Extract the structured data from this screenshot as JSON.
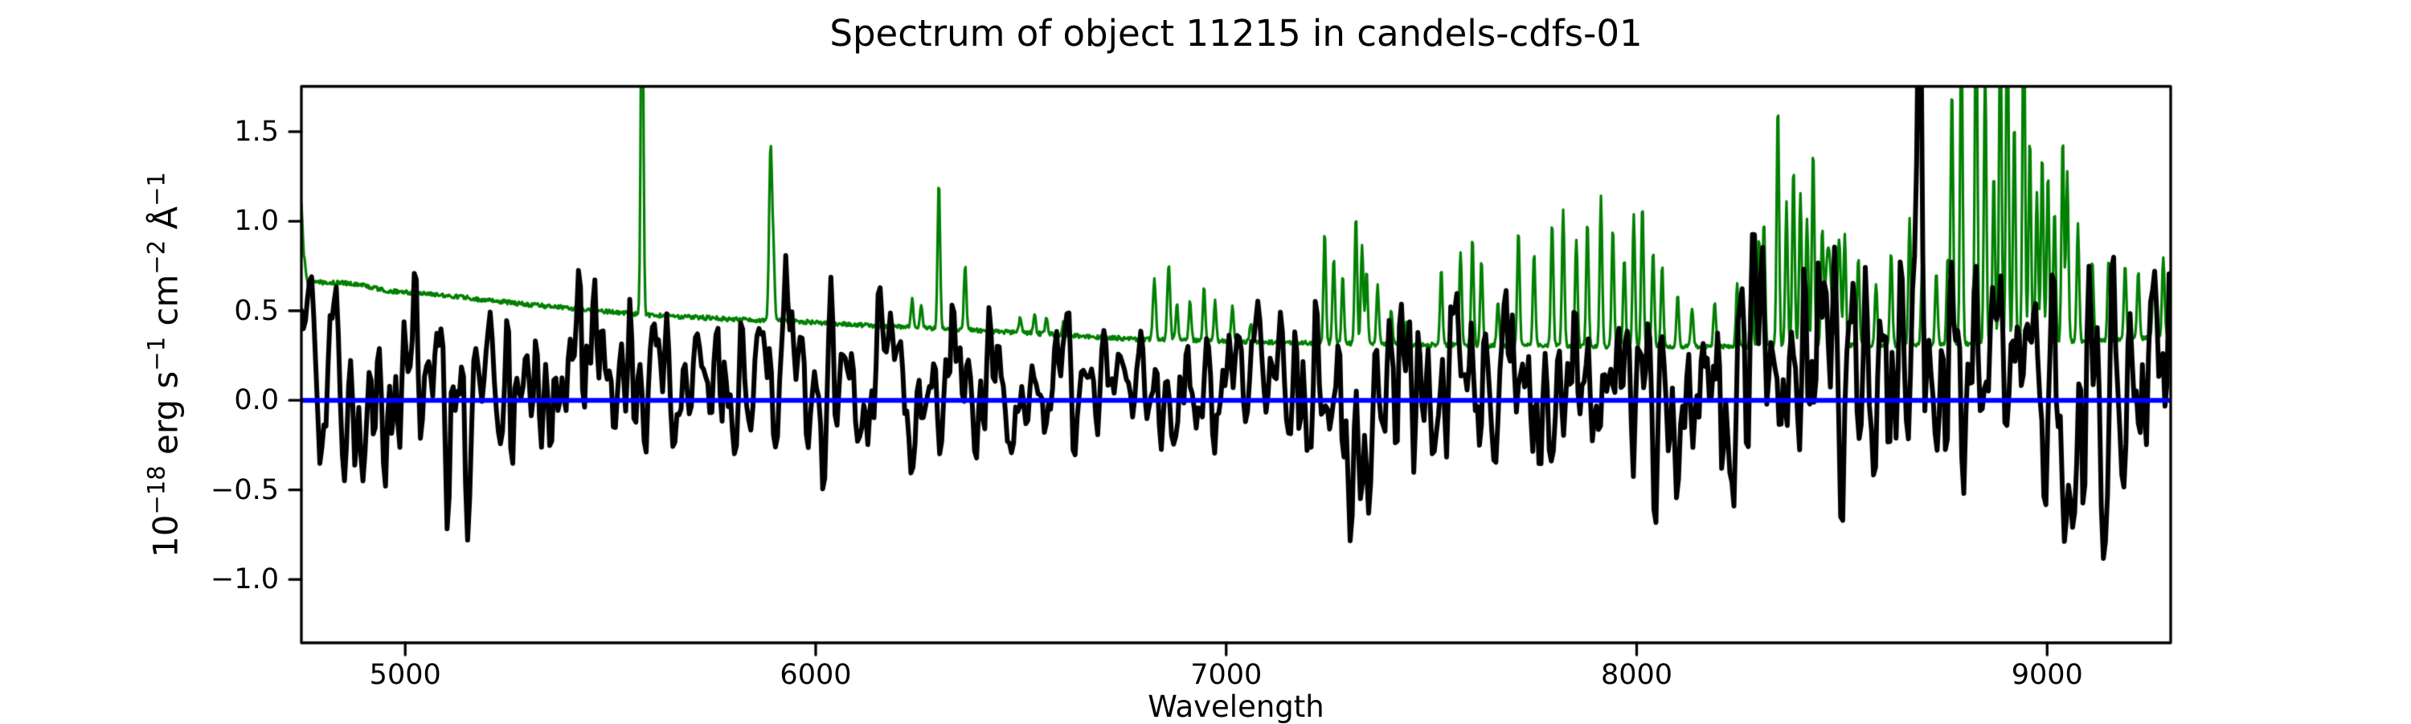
{
  "figure": {
    "title": "Spectrum of object 11215 in candels-cdfs-01",
    "xlabel": "Wavelength",
    "ylabel_parts": [
      {
        "text": "10",
        "sup": false
      },
      {
        "text": "−18",
        "sup": true
      },
      {
        "text": " erg s",
        "sup": false
      },
      {
        "text": "−1",
        "sup": true
      },
      {
        "text": " cm",
        "sup": false
      },
      {
        "text": "−2",
        "sup": true
      },
      {
        "text": " Å",
        "sup": false
      },
      {
        "text": "−1",
        "sup": true
      }
    ]
  },
  "chart_data": {
    "type": "line",
    "title": "Spectrum of object 11215 in candels-cdfs-01",
    "xlabel": "Wavelength",
    "ylabel": "10⁻¹⁸ erg s⁻¹ cm⁻² Å⁻¹",
    "xlim": [
      4747,
      9301
    ],
    "ylim": [
      -1.354,
      1.753
    ],
    "xticks": [
      5000,
      6000,
      7000,
      8000,
      9000
    ],
    "xtick_labels": [
      "5000",
      "6000",
      "7000",
      "8000",
      "9000"
    ],
    "yticks": [
      1.5,
      1.0,
      0.5,
      0.0,
      -0.5,
      -1.0
    ],
    "ytick_labels": [
      "1.5",
      "1.0",
      "0.5",
      "0.0",
      "−0.5",
      "−1.0"
    ],
    "grid": false,
    "legend": null,
    "noise_seed": 11215,
    "flux_step": 5,
    "error_step": 2,
    "reference_line": {
      "y": 0.0,
      "color": "#0000ff",
      "linewidth": 6
    },
    "frame_color": "#000000",
    "series": [
      {
        "name": "object flux",
        "color": "#000000",
        "linewidth": 6,
        "mean_sigma_envelope": [
          [
            4747,
            0.18,
            0.2
          ],
          [
            4800,
            0.15,
            0.24
          ],
          [
            4900,
            0.1,
            0.26
          ],
          [
            5000,
            0.08,
            0.26
          ],
          [
            5150,
            0.08,
            0.27
          ],
          [
            5300,
            0.1,
            0.25
          ],
          [
            5450,
            0.12,
            0.22
          ],
          [
            5600,
            0.13,
            0.22
          ],
          [
            5750,
            0.15,
            0.25
          ],
          [
            5900,
            0.16,
            0.26
          ],
          [
            6050,
            0.12,
            0.24
          ],
          [
            6200,
            0.11,
            0.23
          ],
          [
            6350,
            0.11,
            0.22
          ],
          [
            6500,
            0.1,
            0.19
          ],
          [
            6650,
            0.09,
            0.17
          ],
          [
            6800,
            0.09,
            0.18
          ],
          [
            6950,
            0.08,
            0.2
          ],
          [
            7100,
            0.07,
            0.22
          ],
          [
            7250,
            0.05,
            0.28
          ],
          [
            7400,
            0.06,
            0.3
          ],
          [
            7550,
            0.08,
            0.28
          ],
          [
            7700,
            0.09,
            0.28
          ],
          [
            7850,
            0.08,
            0.3
          ],
          [
            8000,
            0.06,
            0.3
          ],
          [
            8150,
            0.08,
            0.3
          ],
          [
            8300,
            0.12,
            0.38
          ],
          [
            8450,
            0.12,
            0.42
          ],
          [
            8600,
            0.13,
            0.4
          ],
          [
            8750,
            0.1,
            0.38
          ],
          [
            8900,
            0.08,
            0.38
          ],
          [
            9050,
            0.05,
            0.36
          ],
          [
            9200,
            0.1,
            0.34
          ],
          [
            9301,
            0.14,
            0.32
          ]
        ],
        "features": [
          [
            4770,
            0.3,
            8
          ],
          [
            5050,
            -0.3,
            6
          ],
          [
            5230,
            -0.35,
            8
          ],
          [
            5890,
            0.35,
            6
          ],
          [
            5930,
            0.45,
            10
          ],
          [
            7280,
            -0.35,
            20
          ],
          [
            7600,
            0.25,
            10
          ],
          [
            8310,
            0.4,
            5
          ],
          [
            8345,
            0.4,
            6
          ],
          [
            8500,
            -1.32,
            4
          ],
          [
            8640,
            0.35,
            8
          ],
          [
            8690,
            1.42,
            5
          ],
          [
            8870,
            0.4,
            6
          ],
          [
            9048,
            -0.65,
            5
          ],
          [
            9260,
            0.3,
            8
          ]
        ]
      },
      {
        "name": "noise / sky spectrum",
        "color": "#008000",
        "linewidth": 3.2,
        "noise_amp": 0.012,
        "baseline": [
          [
            4747,
            1.09
          ],
          [
            4753,
            0.82
          ],
          [
            4762,
            0.645
          ],
          [
            4790,
            0.66
          ],
          [
            4850,
            0.655
          ],
          [
            4900,
            0.64
          ],
          [
            4960,
            0.61
          ],
          [
            5020,
            0.6
          ],
          [
            5100,
            0.585
          ],
          [
            5200,
            0.56
          ],
          [
            5300,
            0.535
          ],
          [
            5400,
            0.515
          ],
          [
            5500,
            0.495
          ],
          [
            5600,
            0.475
          ],
          [
            5700,
            0.465
          ],
          [
            5800,
            0.452
          ],
          [
            5900,
            0.445
          ],
          [
            6000,
            0.435
          ],
          [
            6100,
            0.422
          ],
          [
            6200,
            0.41
          ],
          [
            6300,
            0.4
          ],
          [
            6400,
            0.39
          ],
          [
            6500,
            0.378
          ],
          [
            6600,
            0.365
          ],
          [
            6700,
            0.352
          ],
          [
            6800,
            0.34
          ],
          [
            6900,
            0.335
          ],
          [
            7000,
            0.33
          ],
          [
            7100,
            0.325
          ],
          [
            7200,
            0.32
          ],
          [
            7350,
            0.315
          ],
          [
            7500,
            0.31
          ],
          [
            7700,
            0.305
          ],
          [
            7900,
            0.3
          ],
          [
            8100,
            0.3
          ],
          [
            8300,
            0.3
          ],
          [
            8500,
            0.305
          ],
          [
            8700,
            0.31
          ],
          [
            8900,
            0.32
          ],
          [
            9100,
            0.33
          ],
          [
            9200,
            0.34
          ],
          [
            9301,
            0.36
          ]
        ],
        "emission_lines": [
          [
            5577,
            2.2,
            3
          ],
          [
            5890,
            0.97,
            3.5
          ],
          [
            5897,
            0.35,
            3
          ],
          [
            6235,
            0.16,
            3
          ],
          [
            6257,
            0.12,
            3
          ],
          [
            6300,
            0.83,
            3
          ],
          [
            6364,
            0.36,
            3
          ],
          [
            6498,
            0.08,
            3
          ],
          [
            6533,
            0.11,
            3
          ],
          [
            6562,
            0.09,
            3
          ],
          [
            6604,
            0.07,
            3
          ],
          [
            6825,
            0.34,
            3.5
          ],
          [
            6860,
            0.42,
            3.5
          ],
          [
            6880,
            0.2,
            3
          ],
          [
            6912,
            0.22,
            3
          ],
          [
            6946,
            0.3,
            3
          ],
          [
            6973,
            0.22,
            3
          ],
          [
            7015,
            0.2,
            3
          ],
          [
            7060,
            0.1,
            3
          ],
          [
            7240,
            0.62,
            3
          ],
          [
            7262,
            0.48,
            3
          ],
          [
            7284,
            0.38,
            3
          ],
          [
            7316,
            0.72,
            3
          ],
          [
            7331,
            0.55,
            3
          ],
          [
            7342,
            0.4,
            3
          ],
          [
            7369,
            0.33,
            3
          ],
          [
            7402,
            0.2,
            3
          ],
          [
            7440,
            0.12,
            3
          ],
          [
            7524,
            0.42,
            3
          ],
          [
            7571,
            0.52,
            3
          ],
          [
            7600,
            0.6,
            3
          ],
          [
            7622,
            0.48,
            3
          ],
          [
            7662,
            0.25,
            3
          ],
          [
            7712,
            0.65,
            3
          ],
          [
            7750,
            0.52,
            3
          ],
          [
            7794,
            0.7,
            3
          ],
          [
            7821,
            0.76,
            3
          ],
          [
            7853,
            0.6,
            3
          ],
          [
            7880,
            0.7,
            3
          ],
          [
            7913,
            0.84,
            3
          ],
          [
            7942,
            0.66,
            3
          ],
          [
            7970,
            0.5,
            3
          ],
          [
            7993,
            0.74,
            3
          ],
          [
            8014,
            0.8,
            3
          ],
          [
            8040,
            0.54,
            3
          ],
          [
            8062,
            0.46,
            3
          ],
          [
            8100,
            0.3,
            3
          ],
          [
            8135,
            0.22,
            3
          ],
          [
            8190,
            0.25,
            3
          ],
          [
            8245,
            0.35,
            3
          ],
          [
            8280,
            0.55,
            3
          ],
          [
            8298,
            0.62,
            3
          ],
          [
            8310,
            0.7,
            3
          ],
          [
            8344,
            1.35,
            3
          ],
          [
            8365,
            0.8,
            3
          ],
          [
            8382,
            1.0,
            3
          ],
          [
            8399,
            0.86,
            3
          ],
          [
            8415,
            0.72,
            3
          ],
          [
            8430,
            1.1,
            3
          ],
          [
            8452,
            0.6,
            3
          ],
          [
            8467,
            0.55,
            7
          ],
          [
            8493,
            0.6,
            4
          ],
          [
            8507,
            0.62,
            3
          ],
          [
            8540,
            0.5,
            3
          ],
          [
            8583,
            0.35,
            3
          ],
          [
            8620,
            0.52,
            3
          ],
          [
            8645,
            0.4,
            3
          ],
          [
            8665,
            0.7,
            3
          ],
          [
            8696,
            0.45,
            3
          ],
          [
            8730,
            0.4,
            3
          ],
          [
            8758,
            0.48,
            3
          ],
          [
            8768,
            1.45,
            3
          ],
          [
            8791,
            1.85,
            3
          ],
          [
            8827,
            2.15,
            3
          ],
          [
            8849,
            1.55,
            3
          ],
          [
            8870,
            0.95,
            3
          ],
          [
            8886,
            1.95,
            3
          ],
          [
            8903,
            2.15,
            3
          ],
          [
            8920,
            1.25,
            3
          ],
          [
            8943,
            2.1,
            3
          ],
          [
            8958,
            1.15,
            3
          ],
          [
            8975,
            0.85,
            3
          ],
          [
            8988,
            1.05,
            3
          ],
          [
            9002,
            0.95,
            3
          ],
          [
            9018,
            0.75,
            3
          ],
          [
            9038,
            1.15,
            3
          ],
          [
            9049,
            0.95,
            3
          ],
          [
            9075,
            0.65,
            3
          ],
          [
            9110,
            0.45,
            3
          ],
          [
            9150,
            0.45,
            3
          ],
          [
            9190,
            0.42,
            3
          ],
          [
            9222,
            0.38,
            3
          ],
          [
            9260,
            0.4,
            3
          ],
          [
            9283,
            0.45,
            3
          ],
          [
            9305,
            0.32,
            3
          ]
        ]
      }
    ]
  }
}
